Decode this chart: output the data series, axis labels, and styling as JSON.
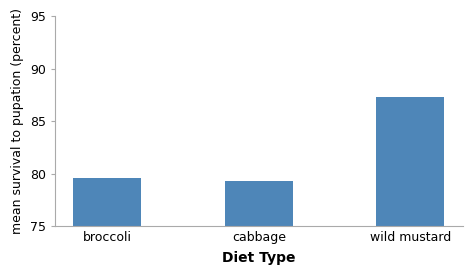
{
  "categories": [
    "broccoli",
    "cabbage",
    "wild mustard"
  ],
  "values": [
    79.6,
    79.3,
    87.3
  ],
  "bar_color": "#4e86b8",
  "xlabel": "Diet Type",
  "ylabel": "mean survival to pupation (percent)",
  "ylim": [
    75,
    95
  ],
  "yticks": [
    75,
    80,
    85,
    90,
    95
  ],
  "xlabel_fontsize": 10,
  "ylabel_fontsize": 9,
  "tick_fontsize": 9,
  "bar_width": 0.45,
  "background_color": "#ffffff",
  "spine_color": "#aaaaaa",
  "xlabel_bold": true
}
